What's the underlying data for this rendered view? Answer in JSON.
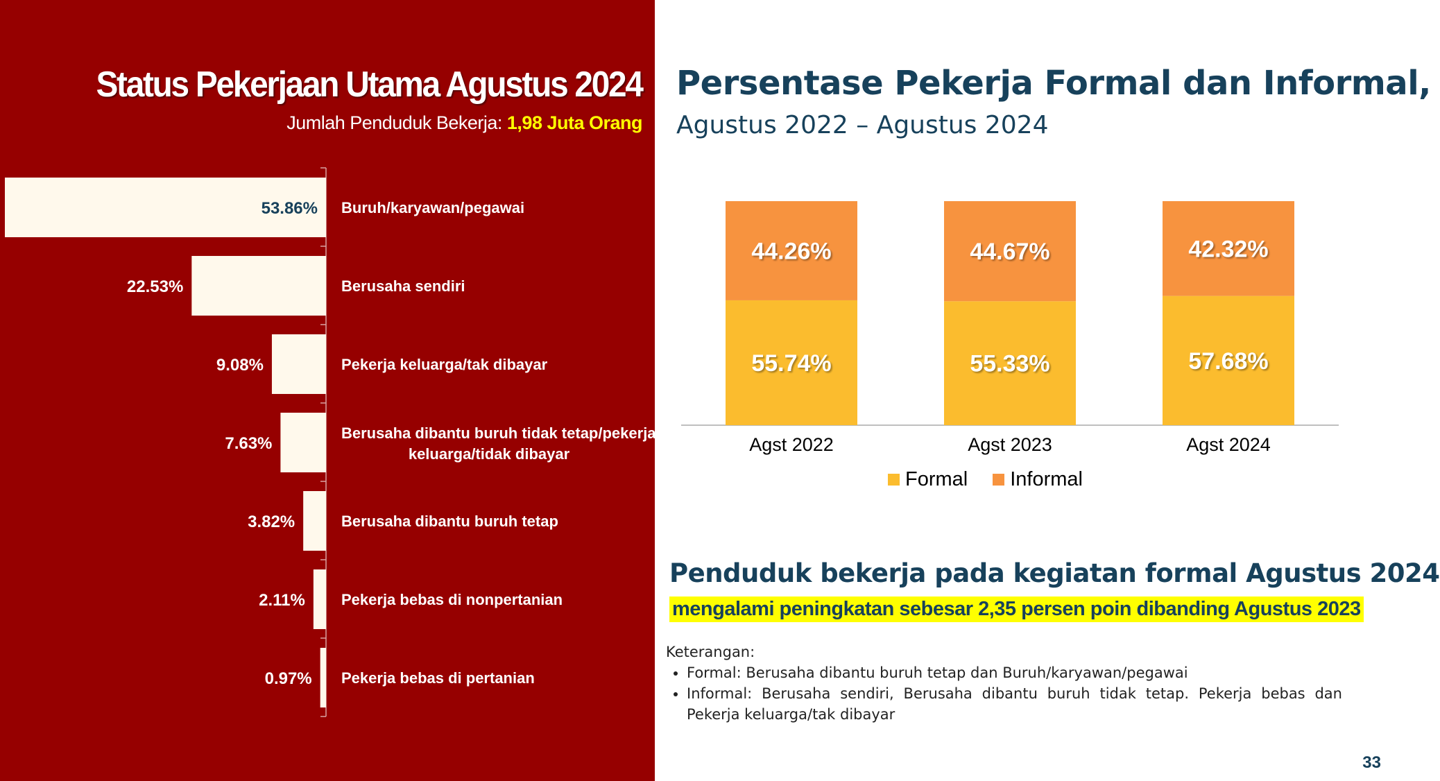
{
  "left": {
    "title": "Status Pekerjaan Utama Agustus 2024",
    "subtitle_label": "Jumlah Penduduk Bekerja:",
    "subtitle_value": "1,98 Juta Orang"
  },
  "right": {
    "title": "Persentase Pekerja Formal dan Informal,",
    "subtitle": "Agustus 2022 – Agustus 2024"
  },
  "highlight": {
    "heading": "Penduduk bekerja pada kegiatan formal Agustus 2024",
    "sub": "mengalami peningkatan sebesar 2,35  persen poin dibanding Agustus 2023"
  },
  "notes": {
    "title": "Keterangan:",
    "items": [
      "Formal: Berusaha dibantu buruh tetap dan Buruh/karyawan/pegawai",
      "Informal: Berusaha sendiri, Berusaha dibantu buruh tidak tetap. Pekerja bebas dan Pekerja keluarga/tak dibayar"
    ]
  },
  "page_number": "33",
  "colors": {
    "left_background": "#960000",
    "bar_fill": "#fff9ec",
    "formal": "#fbbc2e",
    "informal": "#f7933f",
    "heading_blue": "#17415b",
    "highlight_yellow": "#ffff00"
  },
  "chart_data": [
    {
      "type": "bar",
      "orientation": "horizontal",
      "categories": [
        "Buruh/karyawan/pegawai",
        "Berusaha sendiri",
        "Pekerja keluarga/tak dibayar",
        "Berusaha dibantu buruh tidak tetap/pekerja keluarga/tidak dibayar",
        "Berusaha dibantu buruh tetap",
        "Pekerja bebas di nonpertanian",
        "Pekerja bebas di pertanian"
      ],
      "values": [
        53.86,
        22.53,
        9.08,
        7.63,
        3.82,
        2.11,
        0.97
      ],
      "labels": [
        "53.86%",
        "22.53%",
        "9.08%",
        "7.63%",
        "3.82%",
        "2.11%",
        "0.97%"
      ],
      "title": "Status Pekerjaan Utama Agustus 2024"
    },
    {
      "type": "bar",
      "stacked": true,
      "categories": [
        "Agst 2022",
        "Agst 2023",
        "Agst 2024"
      ],
      "series": [
        {
          "name": "Formal",
          "values": [
            55.74,
            55.33,
            57.68
          ],
          "labels": [
            "55.74%",
            "55.33%",
            "57.68%"
          ]
        },
        {
          "name": "Informal",
          "values": [
            44.26,
            44.67,
            42.32
          ],
          "labels": [
            "44.26%",
            "44.67%",
            "42.32%"
          ]
        }
      ],
      "ylim": [
        0,
        100
      ],
      "legend": "bottom",
      "grid": false,
      "title": "Persentase Pekerja Formal dan Informal,"
    }
  ]
}
